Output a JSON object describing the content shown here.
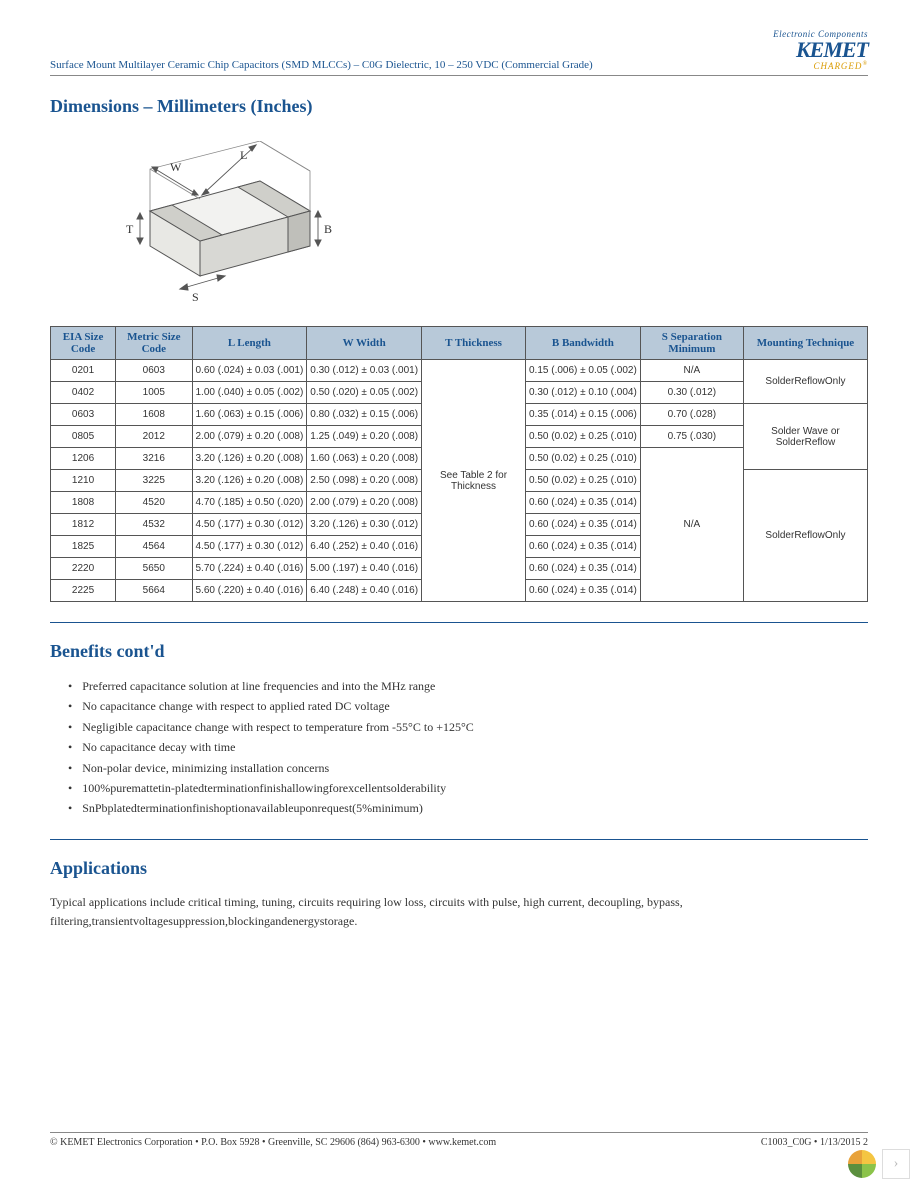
{
  "header": {
    "doc_title": "Surface Mount Multilayer Ceramic Chip Capacitors (SMD MLCCs) – C0G Dielectric, 10 – 250 VDC (Commercial Grade)",
    "logo_top": "Electronic Components",
    "logo_main": "KEMET",
    "logo_sub": "CHARGED"
  },
  "sections": {
    "dimensions_title": "Dimensions – Millimeters (Inches)",
    "benefits_title": "Benefits cont'd",
    "applications_title": "Applications"
  },
  "diagram": {
    "labels": {
      "W": "W",
      "L": "L",
      "T": "T",
      "B": "B",
      "S": "S"
    },
    "stroke": "#555555",
    "fill_top": "#f2f2f0",
    "fill_side": "#d8d8d4",
    "fill_front": "#e8e8e4",
    "fill_term": "#cfcfca"
  },
  "table": {
    "header_bg": "#b8c9d9",
    "header_color": "#1a5490",
    "border_color": "#555555",
    "columns": [
      "EIA Size Code",
      "Metric Size Code",
      "L Length",
      "W Width",
      "T Thickness",
      "B Bandwidth",
      "S Separation Minimum",
      "Mounting Technique"
    ],
    "thickness_merged": "See Table 2 for Thickness",
    "rows": [
      {
        "eia": "0201",
        "metric": "0603",
        "L": "0.60 (.024) ± 0.03 (.001)",
        "W": "0.30 (.012) ± 0.03 (.001)",
        "B": "0.15 (.006) ± 0.05 (.002)",
        "S": "N/A"
      },
      {
        "eia": "0402",
        "metric": "1005",
        "L": "1.00 (.040) ± 0.05 (.002)",
        "W": "0.50 (.020) ± 0.05 (.002)",
        "B": "0.30 (.012) ± 0.10 (.004)",
        "S": "0.30 (.012)"
      },
      {
        "eia": "0603",
        "metric": "1608",
        "L": "1.60 (.063) ± 0.15 (.006)",
        "W": "0.80 (.032) ± 0.15 (.006)",
        "B": "0.35 (.014) ± 0.15 (.006)",
        "S": "0.70 (.028)"
      },
      {
        "eia": "0805",
        "metric": "2012",
        "L": "2.00 (.079) ± 0.20 (.008)",
        "W": "1.25 (.049) ± 0.20 (.008)",
        "B": "0.50 (0.02) ± 0.25 (.010)",
        "S": "0.75 (.030)"
      },
      {
        "eia": "1206",
        "metric": "3216",
        "L": "3.20 (.126) ± 0.20 (.008)",
        "W": "1.60 (.063) ± 0.20 (.008)",
        "B": "0.50 (0.02) ± 0.25 (.010)",
        "S": ""
      },
      {
        "eia": "1210",
        "metric": "3225",
        "L": "3.20 (.126) ± 0.20 (.008)",
        "W": "2.50 (.098) ± 0.20 (.008)",
        "B": "0.50 (0.02) ± 0.25 (.010)",
        "S": ""
      },
      {
        "eia": "1808",
        "metric": "4520",
        "L": "4.70 (.185) ± 0.50 (.020)",
        "W": "2.00 (.079) ± 0.20 (.008)",
        "B": "0.60 (.024) ± 0.35 (.014)",
        "S": ""
      },
      {
        "eia": "1812",
        "metric": "4532",
        "L": "4.50 (.177) ± 0.30 (.012)",
        "W": "3.20 (.126) ± 0.30 (.012)",
        "B": "0.60 (.024) ± 0.35 (.014)",
        "S": ""
      },
      {
        "eia": "1825",
        "metric": "4564",
        "L": "4.50 (.177) ± 0.30 (.012)",
        "W": "6.40 (.252) ± 0.40 (.016)",
        "B": "0.60 (.024) ± 0.35 (.014)",
        "S": ""
      },
      {
        "eia": "2220",
        "metric": "5650",
        "L": "5.70 (.224) ± 0.40 (.016)",
        "W": "5.00 (.197) ± 0.40 (.016)",
        "B": "0.60 (.024) ± 0.35 (.014)",
        "S": ""
      },
      {
        "eia": "2225",
        "metric": "5664",
        "L": "5.60 (.220) ± 0.40 (.016)",
        "W": "6.40 (.248) ± 0.40 (.016)",
        "B": "0.60 (.024) ± 0.35 (.014)",
        "S": ""
      }
    ],
    "mounting": {
      "group1": "SolderReflowOnly",
      "group2": "Solder Wave or SolderReflow",
      "group3": "SolderReflowOnly"
    },
    "s_na_merged": "N/A"
  },
  "benefits": [
    "Preferred capacitance solution at line frequencies and into the MHz range",
    "No capacitance change with respect to applied rated DC voltage",
    "Negligible capacitance change with respect to temperature from -55°C to +125°C",
    "No capacitance decay with time",
    "Non-polar device, minimizing installation concerns",
    "100%puremattetin-platedterminationfinishallowingforexcellentsolderability",
    "SnPbplatedterminationfinishoptionavailableuponrequest(5%minimum)"
  ],
  "applications_text": "Typical applications include critical timing, tuning, circuits requiring low loss, circuits with pulse, high current, decoupling, bypass, filtering,transientvoltagesuppression,blockingandenergystorage.",
  "footer": {
    "left": "© KEMET Electronics Corporation • P.O. Box 5928 • Greenville, SC 29606 (864) 963-6300 • www.kemet.com",
    "right": "C1003_C0G • 1/13/2015     2"
  }
}
